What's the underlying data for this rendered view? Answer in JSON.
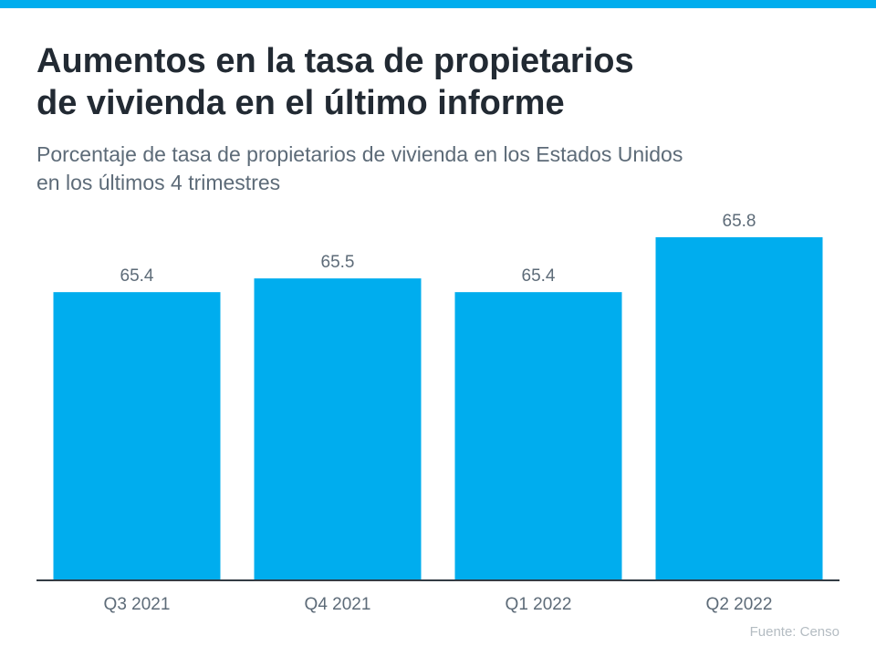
{
  "title_lines": [
    "Aumentos en la tasa de propietarios",
    "de vivienda en el último informe"
  ],
  "subtitle_lines": [
    "Porcentaje de tasa de propietarios de vivienda en los Estados Unidos",
    "en los últimos 4 trimestres"
  ],
  "source": "Fuente:  Censo",
  "colors": {
    "accent": "#00adee",
    "axis": "#333c44",
    "label": "#5d6b78"
  },
  "chart_data": {
    "type": "bar",
    "title": "Aumentos en la tasa de propietarios de vivienda en el último informe",
    "categories": [
      "Q3 2021",
      "Q4 2021",
      "Q1 2022",
      "Q2 2022"
    ],
    "values": [
      65.4,
      65.5,
      65.4,
      65.8
    ],
    "value_labels": [
      "65.4",
      "65.5",
      "65.4",
      "65.8"
    ],
    "xlabel": "",
    "ylabel": "",
    "ylim": [
      63.3,
      65.8
    ],
    "grid": false,
    "bar_color": "#00adee"
  }
}
